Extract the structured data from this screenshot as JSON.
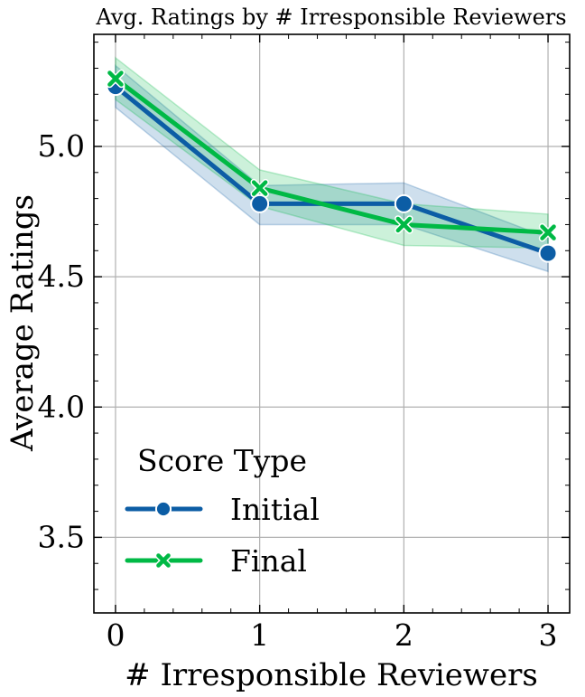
{
  "chart_data": {
    "type": "line",
    "title": "Avg. Ratings by # Irresponsible Reviewers",
    "xlabel": "# Irresponsible Reviewers",
    "ylabel": "Average Ratings",
    "x": [
      0,
      1,
      2,
      3
    ],
    "xticks": [
      0,
      1,
      2,
      3
    ],
    "xtick_labels": [
      "0",
      "1",
      "2",
      "3"
    ],
    "yticks": [
      3.5,
      4.0,
      4.5,
      5.0
    ],
    "ytick_labels": [
      "3.5",
      "4.0",
      "4.5",
      "5.0"
    ],
    "xlim": [
      -0.15,
      3.15
    ],
    "ylim": [
      3.21,
      5.43
    ],
    "grid": true,
    "legend": {
      "title": "Score Type",
      "position": "lower-left"
    },
    "series": [
      {
        "name": "Initial",
        "marker": "circle",
        "color": "#0c5da5",
        "values": [
          5.23,
          4.78,
          4.78,
          4.59
        ],
        "ci_lower": [
          5.15,
          4.7,
          4.7,
          4.52
        ],
        "ci_upper": [
          5.31,
          4.85,
          4.86,
          4.65
        ]
      },
      {
        "name": "Final",
        "marker": "x",
        "color": "#00b945",
        "values": [
          5.26,
          4.84,
          4.7,
          4.67
        ],
        "ci_lower": [
          5.18,
          4.77,
          4.62,
          4.61
        ],
        "ci_upper": [
          5.34,
          4.91,
          4.78,
          4.74
        ]
      }
    ]
  }
}
